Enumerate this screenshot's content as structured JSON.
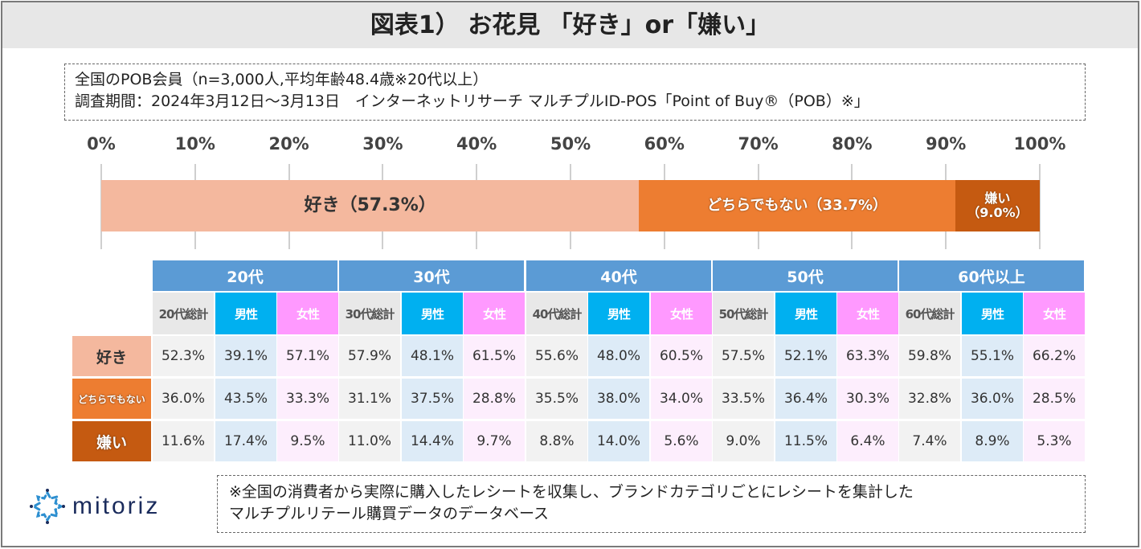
{
  "title": "図表1） お花見 「好き」or「嫌い」",
  "info": {
    "line1": "全国のPOB会員（n=3,000人,平均年齢48.4歳※20代以上）",
    "line2": "調査期間：2024年3月12日〜3月13日　インターネットリサーチ マルチプルID-POS「Point of Buy®（POB）※」"
  },
  "chart_data": {
    "type": "bar",
    "orientation": "horizontal-stacked",
    "x_ticks": [
      "0%",
      "10%",
      "20%",
      "30%",
      "40%",
      "50%",
      "60%",
      "70%",
      "80%",
      "90%",
      "100%"
    ],
    "xlim": [
      0,
      100
    ],
    "series": [
      {
        "name": "好き",
        "value": 57.3,
        "label": "好き（57.3%）",
        "color": "#f4b89e"
      },
      {
        "name": "どちらでもない",
        "value": 33.7,
        "label": "どちらでもない（33.7%）",
        "color": "#ed7d31"
      },
      {
        "name": "嫌い",
        "value": 9.0,
        "label": "嫌い\n（9.0%）",
        "color": "#c55a11"
      }
    ]
  },
  "table": {
    "groups": [
      {
        "label": "20代",
        "subs": [
          "20代総計",
          "男性",
          "女性"
        ]
      },
      {
        "label": "30代",
        "subs": [
          "30代総計",
          "男性",
          "女性"
        ]
      },
      {
        "label": "40代",
        "subs": [
          "40代総計",
          "男性",
          "女性"
        ]
      },
      {
        "label": "50代",
        "subs": [
          "50代総計",
          "男性",
          "女性"
        ]
      },
      {
        "label": "60代以上",
        "subs": [
          "60代総計",
          "男性",
          "女性"
        ]
      }
    ],
    "rows": [
      {
        "label": "好き",
        "bg": "#f4b89e",
        "color": "#333333",
        "values": [
          "52.3%",
          "39.1%",
          "57.1%",
          "57.9%",
          "48.1%",
          "61.5%",
          "55.6%",
          "48.0%",
          "60.5%",
          "57.5%",
          "52.1%",
          "63.3%",
          "59.8%",
          "55.1%",
          "66.2%"
        ]
      },
      {
        "label": "どちらでもない",
        "bg": "#ed7d31",
        "color": "#ffffff",
        "values": [
          "36.0%",
          "43.5%",
          "33.3%",
          "31.1%",
          "37.5%",
          "28.8%",
          "35.5%",
          "38.0%",
          "34.0%",
          "33.5%",
          "36.4%",
          "30.3%",
          "32.8%",
          "36.0%",
          "28.5%"
        ]
      },
      {
        "label": "嫌い",
        "bg": "#c55a11",
        "color": "#ffffff",
        "values": [
          "11.6%",
          "17.4%",
          "9.5%",
          "11.0%",
          "14.4%",
          "9.7%",
          "8.8%",
          "14.0%",
          "5.6%",
          "9.0%",
          "11.5%",
          "6.4%",
          "7.4%",
          "8.9%",
          "5.3%"
        ]
      }
    ]
  },
  "colors": {
    "group_header": "#5b9bd5",
    "total_header": "#e8e8e8",
    "male_header": "#00b0f0",
    "female_header": "#ff99ff",
    "total_cell": "#f2f2f2",
    "male_cell": "#ddebf7",
    "female_cell": "#fdeefd"
  },
  "logo": {
    "text": "mitoriz"
  },
  "note": {
    "line1": "※全国の消費者から実際に購入したレシートを収集し、ブランドカテゴリごとにレシートを集計した",
    "line2": "マルチプルリテール購買データのデータベース"
  }
}
